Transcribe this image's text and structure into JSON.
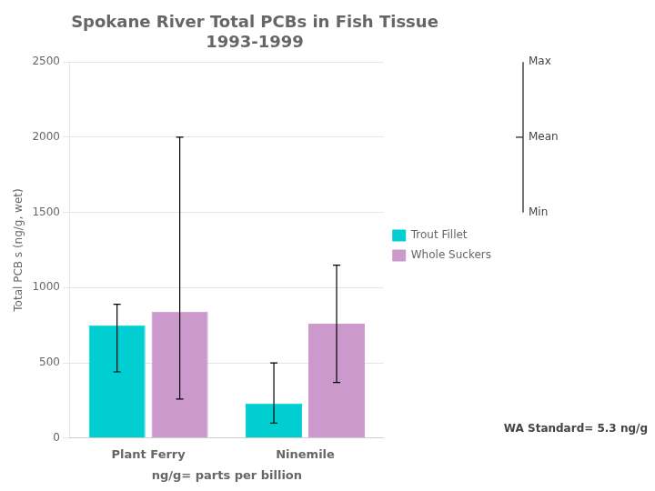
{
  "chart_data": {
    "type": "bar",
    "title": "Spokane River Total PCBs in Fish Tissue\n1993-1999",
    "ylabel": "Total PCB s (ng/g, wet)",
    "xlabel": "ng/g= parts per billion",
    "categories": [
      "Plant Ferry",
      "Ninemile"
    ],
    "series": [
      {
        "name": "Trout Fillet",
        "color": "#00CED1",
        "values": [
          750,
          230
        ],
        "err_low": [
          310,
          130
        ],
        "err_high": [
          140,
          270
        ]
      },
      {
        "name": "Whole Suckers",
        "color": "#CC99CC",
        "values": [
          840,
          760
        ],
        "err_low": [
          580,
          390
        ],
        "err_high": [
          1160,
          390
        ]
      }
    ],
    "ylim": [
      0,
      2500
    ],
    "yticks": [
      0,
      500,
      1000,
      1500,
      2000,
      2500
    ],
    "grid": true,
    "legend": "right",
    "annotations": [
      {
        "text": "Max",
        "y": 2500
      },
      {
        "text": "Mean",
        "y": 2000
      },
      {
        "text": "Min",
        "y": 1500
      },
      {
        "text": "WA Standard= 5.3 ng/g"
      }
    ]
  }
}
